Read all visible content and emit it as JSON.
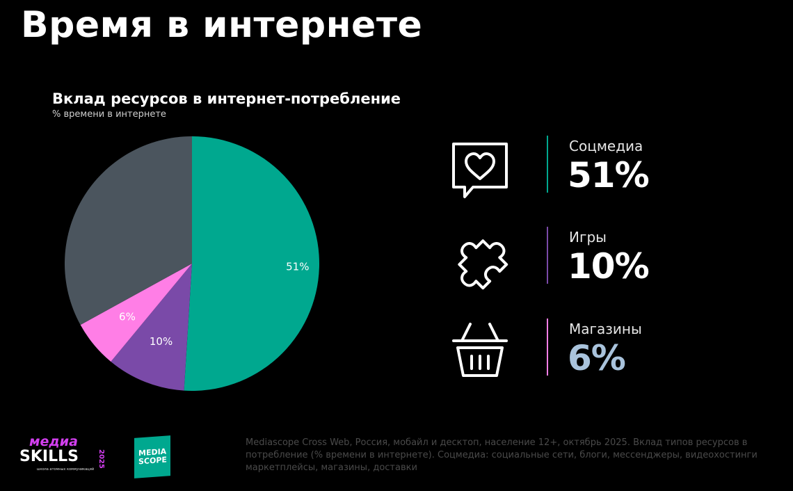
{
  "page": {
    "title": "Время в интернете"
  },
  "chart_data": {
    "type": "pie",
    "title": "Вклад ресурсов в интернет-потребление",
    "subtitle": "% времени в интернете",
    "slices": [
      {
        "label": "51%",
        "value": 51,
        "color": "#00a88f"
      },
      {
        "label": "10%",
        "value": 10,
        "color": "#7a4aa8"
      },
      {
        "label": "6%",
        "value": 6,
        "color": "#ff7ee6"
      },
      {
        "label": "",
        "value": 33,
        "color": "#4b555e"
      }
    ]
  },
  "stats": [
    {
      "label": "Соцмедиа",
      "value": "51%",
      "icon": "heart-chat-icon",
      "color": "#00a88f",
      "value_color": "#ffffff"
    },
    {
      "label": "Игры",
      "value": "10%",
      "icon": "puzzle-icon",
      "color": "#7a4aa8",
      "value_color": "#ffffff"
    },
    {
      "label": "Магазины",
      "value": "6%",
      "icon": "basket-icon",
      "color": "#ff7ee6",
      "value_color": "#a9c3dc"
    }
  ],
  "logos": {
    "mediaskills_top": "медиа",
    "mediaskills_bottom": "SKILLS",
    "mediaskills_year": "2025",
    "mediaskills_tagline": "школа атомных коммуникаций",
    "mediascope": "MEDIA SCOPE"
  },
  "source": {
    "line1": "Mediascope Cross Web, Россия, мобайл и десктоп, население 12+, октябрь 2025. Вклад типов ресурсов в",
    "line2": "потребление (% времени в интернете). Соцмедиа: социальные сети, блоги, мессенджеры, видеохостинги",
    "line3": "маркетплейсы, магазины, доставки"
  }
}
